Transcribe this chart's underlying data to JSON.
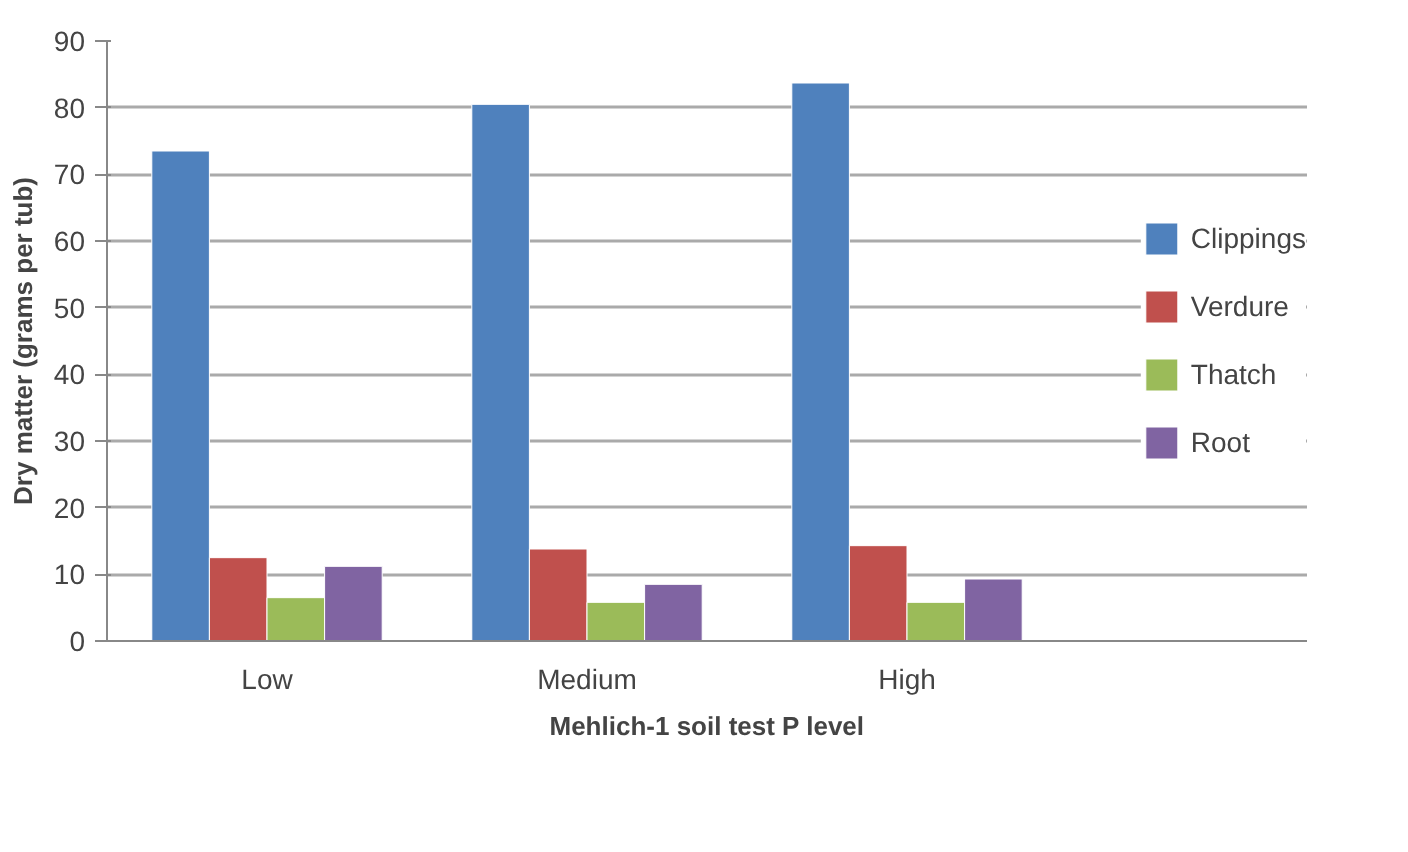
{
  "chart_data": {
    "type": "bar",
    "xlabel": "Mehlich-1 soil test P level",
    "ylabel": "Dry matter (grams per tub)",
    "categories": [
      "Low",
      "Medium",
      "High"
    ],
    "series": [
      {
        "name": "Clippings",
        "color": "#4f81bd",
        "values": [
          73.5,
          80.5,
          83.7
        ]
      },
      {
        "name": "Verdure",
        "color": "#c0504d",
        "values": [
          12.5,
          13.8,
          14.3
        ]
      },
      {
        "name": "Thatch",
        "color": "#9bbb59",
        "values": [
          6.5,
          5.8,
          5.8
        ]
      },
      {
        "name": "Root",
        "color": "#8064a2",
        "values": [
          11.2,
          8.5,
          9.3
        ]
      }
    ],
    "ylim": [
      0,
      90
    ],
    "yticks": [
      0,
      10,
      20,
      30,
      40,
      50,
      60,
      70,
      80,
      90
    ],
    "grid": "y",
    "legend": "right"
  }
}
